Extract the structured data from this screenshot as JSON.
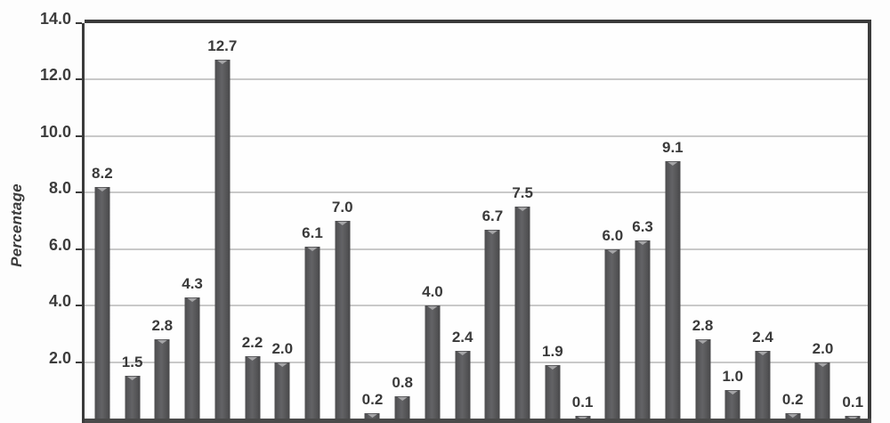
{
  "chart_data": {
    "type": "bar",
    "title": "",
    "xlabel": "",
    "ylabel": "Percentage",
    "ylim": [
      0,
      14
    ],
    "grid": true,
    "legend": "none",
    "yticks": [
      14,
      12,
      10,
      8,
      6,
      4,
      2
    ],
    "ytick_labels": [
      "14.0",
      "12.0",
      "10.0",
      "8.0",
      "6.0",
      "4.0",
      "2.0"
    ],
    "xtick_labels_visible": false,
    "values": [
      8.2,
      1.5,
      2.8,
      4.3,
      12.7,
      2.2,
      2.0,
      6.1,
      7.0,
      0.2,
      0.8,
      4.0,
      2.4,
      6.7,
      7.5,
      1.9,
      0.1,
      6.0,
      6.3,
      9.1,
      2.8,
      1.0,
      2.4,
      0.2,
      2.0,
      0.1
    ],
    "value_labels": [
      "8.2",
      "1.5",
      "2.8",
      "4.3",
      "12.7",
      "2.2",
      "2.0",
      "6.1",
      "7.0",
      "0.2",
      "0.8",
      "4.0",
      "2.4",
      "6.7",
      "7.5",
      "1.9",
      "0.1",
      "6.0",
      "6.3",
      "9.1",
      "2.8",
      "1.0",
      "2.4",
      "0.2",
      "2.0",
      "0.1"
    ],
    "colors": {
      "bar": "#58585a",
      "bar_highlight": "#a5a5a7",
      "axis": "#3b3b3b",
      "gridline": "#c9c9c9",
      "text": "#3c3c3c",
      "background": "#fdfdfd"
    }
  }
}
